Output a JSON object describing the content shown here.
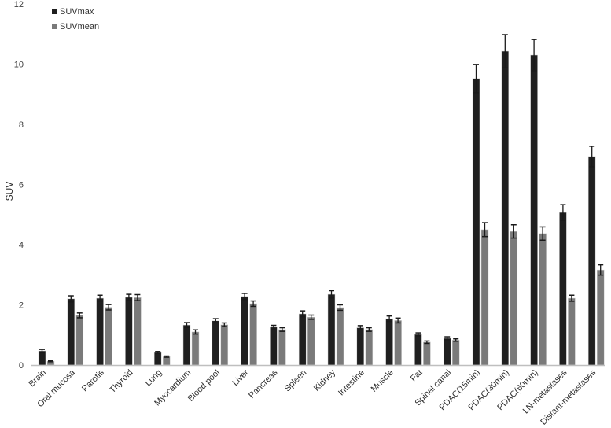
{
  "chart_data": {
    "type": "bar",
    "title": "",
    "xlabel": "",
    "ylabel": "SUV",
    "ylim": [
      0,
      12
    ],
    "yticks": [
      0,
      2,
      4,
      6,
      8,
      10,
      12
    ],
    "grid": false,
    "legend_position": "top-left",
    "categories": [
      "Brain",
      "Oral mucosa",
      "Parotis",
      "Thyroid",
      "Lung",
      "Myocardium",
      "Blood pool",
      "Liver",
      "Pancreas",
      "Spleen",
      "Kidney",
      "Intestine",
      "Muscle",
      "Fat",
      "Spinal canal",
      "PDAC(15min)",
      "PDAC(30min)",
      "PDAC(60min)",
      "LN-metastases",
      "Distant-metastases"
    ],
    "series": [
      {
        "name": "SUVmax",
        "color": "#1f1f1f",
        "values": [
          0.47,
          2.2,
          2.22,
          2.25,
          0.42,
          1.33,
          1.47,
          2.28,
          1.26,
          1.7,
          2.35,
          1.24,
          1.54,
          1.02,
          0.89,
          9.52,
          10.43,
          10.3,
          5.07,
          6.93
        ],
        "errors": [
          0.05,
          0.1,
          0.1,
          0.1,
          0.03,
          0.08,
          0.07,
          0.1,
          0.06,
          0.1,
          0.12,
          0.07,
          0.09,
          0.05,
          0.05,
          0.47,
          0.55,
          0.52,
          0.26,
          0.34
        ]
      },
      {
        "name": "SUVmean",
        "color": "#7a7a7a",
        "values": [
          0.13,
          1.65,
          1.92,
          2.24,
          0.28,
          1.1,
          1.34,
          2.04,
          1.18,
          1.59,
          1.91,
          1.18,
          1.48,
          0.76,
          0.83,
          4.5,
          4.44,
          4.37,
          2.22,
          3.16
        ],
        "errors": [
          0.02,
          0.08,
          0.09,
          0.1,
          0.02,
          0.07,
          0.06,
          0.09,
          0.06,
          0.07,
          0.09,
          0.06,
          0.08,
          0.04,
          0.04,
          0.23,
          0.22,
          0.22,
          0.1,
          0.17
        ]
      }
    ]
  },
  "axis": {
    "color": "#bfbfbf"
  }
}
